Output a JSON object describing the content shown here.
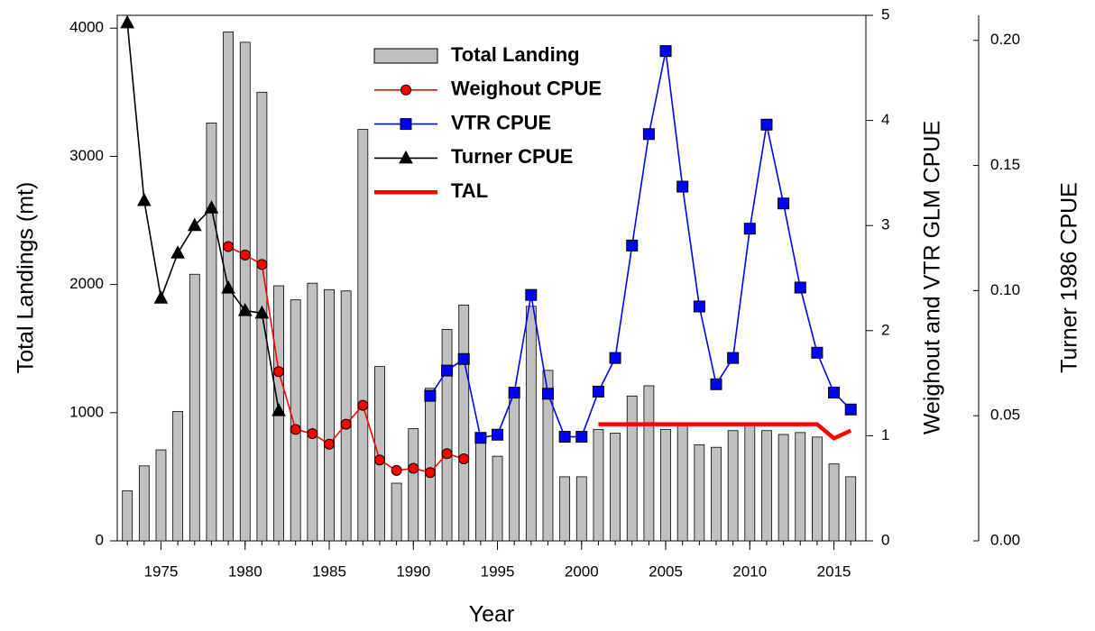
{
  "chart_data": {
    "type": "bar",
    "x_label": "Year",
    "y_label": "Total Landings (mt)",
    "y2_label": "Weighout and VTR GLM CPUE",
    "y3_label": "Turner 1986 CPUE",
    "x": [
      1973,
      1974,
      1975,
      1976,
      1977,
      1978,
      1979,
      1980,
      1981,
      1982,
      1983,
      1984,
      1985,
      1986,
      1987,
      1988,
      1989,
      1990,
      1991,
      1992,
      1993,
      1994,
      1995,
      1996,
      1997,
      1998,
      1999,
      2000,
      2001,
      2002,
      2003,
      2004,
      2005,
      2006,
      2007,
      2008,
      2009,
      2010,
      2011,
      2012,
      2013,
      2014,
      2015,
      2016
    ],
    "xlim": [
      1972.4,
      2016.9
    ],
    "xticks": [
      1975,
      1980,
      1985,
      1990,
      1995,
      2000,
      2005,
      2010,
      2015
    ],
    "ylim": [
      0,
      4100
    ],
    "yticks": [
      0,
      1000,
      2000,
      3000,
      4000
    ],
    "y2lim": [
      0,
      5
    ],
    "y2ticks": [
      0,
      1,
      2,
      3,
      4,
      5
    ],
    "y3lim": [
      0,
      0.21
    ],
    "y3ticks": [
      {
        "value": 0,
        "label": "0.00"
      },
      {
        "value": 0.05,
        "label": "0.05"
      },
      {
        "value": 0.1,
        "label": "0.10"
      },
      {
        "value": 0.15,
        "label": "0.15"
      },
      {
        "value": 0.2,
        "label": "0.20"
      }
    ],
    "legend": "top",
    "series": [
      {
        "name": "Total Landing",
        "type": "bar",
        "axis": "y",
        "color": "#c0c0c0",
        "values": [
          390,
          585,
          710,
          1010,
          2080,
          3260,
          3970,
          3890,
          3500,
          1990,
          1880,
          2010,
          1960,
          1950,
          3210,
          1360,
          450,
          875,
          1190,
          1650,
          1840,
          780,
          660,
          1150,
          1830,
          1330,
          500,
          500,
          870,
          840,
          1130,
          1210,
          870,
          900,
          750,
          730,
          860,
          900,
          860,
          830,
          845,
          810,
          600,
          500
        ]
      },
      {
        "name": "Weighout CPUE",
        "type": "line",
        "axis": "y2",
        "color": "#ff0000",
        "marker": "circle",
        "values": [
          null,
          null,
          null,
          null,
          null,
          null,
          2.8,
          2.72,
          2.63,
          1.61,
          1.06,
          1.02,
          0.92,
          1.11,
          1.29,
          0.77,
          0.67,
          0.69,
          0.65,
          0.83,
          0.78,
          null,
          null,
          null,
          null,
          null,
          null,
          null,
          null,
          null,
          null,
          null,
          null,
          null,
          null,
          null,
          null,
          null,
          null,
          null,
          null,
          null,
          null,
          null
        ]
      },
      {
        "name": "VTR CPUE",
        "type": "line",
        "axis": "y2",
        "color": "#0000ff",
        "marker": "square",
        "values": [
          null,
          null,
          null,
          null,
          null,
          null,
          null,
          null,
          null,
          null,
          null,
          null,
          null,
          null,
          null,
          null,
          null,
          null,
          1.38,
          1.62,
          1.73,
          0.98,
          1.01,
          1.41,
          2.34,
          1.4,
          0.99,
          0.99,
          1.42,
          1.74,
          2.81,
          3.87,
          4.66,
          3.37,
          2.23,
          1.49,
          1.74,
          2.97,
          3.96,
          3.21,
          2.41,
          1.79,
          1.41,
          1.25
        ]
      },
      {
        "name": "Turner CPUE",
        "type": "line",
        "axis": "y3",
        "color": "#000000",
        "marker": "triangle",
        "values": [
          0.207,
          0.136,
          0.097,
          0.115,
          0.126,
          0.133,
          0.101,
          0.092,
          0.091,
          0.052,
          null,
          null,
          null,
          null,
          null,
          null,
          null,
          null,
          null,
          null,
          null,
          null,
          null,
          null,
          null,
          null,
          null,
          null,
          null,
          null,
          null,
          null,
          null,
          null,
          null,
          null,
          null,
          null,
          null,
          null,
          null,
          null,
          null,
          null
        ]
      },
      {
        "name": "TAL",
        "type": "line",
        "axis": "y",
        "color": "#ff0000",
        "marker": "none",
        "values": [
          null,
          null,
          null,
          null,
          null,
          null,
          null,
          null,
          null,
          null,
          null,
          null,
          null,
          null,
          null,
          null,
          null,
          null,
          null,
          null,
          null,
          null,
          null,
          null,
          null,
          null,
          null,
          null,
          910,
          910,
          910,
          910,
          910,
          910,
          910,
          910,
          910,
          910,
          910,
          910,
          910,
          910,
          800,
          860
        ]
      }
    ]
  }
}
